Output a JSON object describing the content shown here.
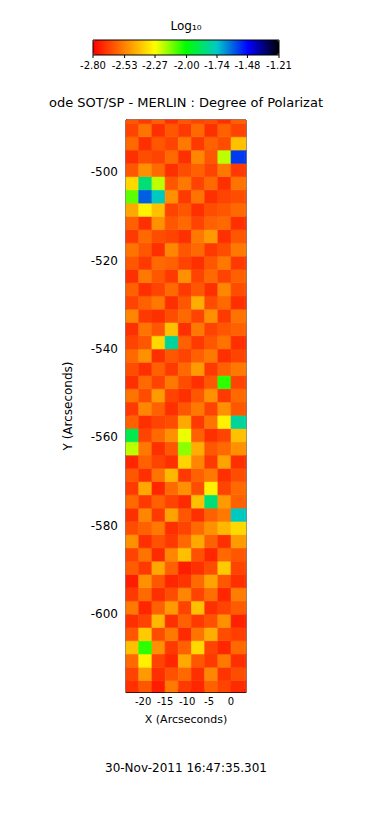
{
  "chart_data": {
    "type": "heatmap",
    "title": "ode SOT/SP - MERLIN : Degree of Polarizat",
    "x_label": "X (Arcseconds)",
    "y_label": "Y (Arcseconds)",
    "annotations": [
      "30-Nov-2011 16:47:35.301"
    ],
    "xlim": [
      -23.9,
      3.4
    ],
    "ylim": [
      -617.6,
      -488.2
    ],
    "xticks": [
      -20,
      -15,
      -10,
      -5,
      0
    ],
    "yticks": [
      -600,
      -580,
      -560,
      -540,
      -520,
      -500
    ],
    "colorbar": {
      "title": "Log₁₀",
      "range": [
        -2.8,
        -1.21
      ],
      "ticks": [
        {
          "value": -2.8,
          "label": "-2.80"
        },
        -2.53,
        -2.27,
        {
          "value": -2.0,
          "label": "-2.00"
        },
        -1.74,
        -1.48,
        -1.21
      ]
    },
    "x": [
      -22.5,
      -19.5,
      -16.5,
      -13.5,
      -10.5,
      -7.5,
      -4.5,
      -1.5,
      1.5,
      4.5
    ],
    "y": [
      -616.5,
      -613.5,
      -610.5,
      -607.5,
      -604.5,
      -601.5,
      -598.5,
      -595.5,
      -592.5,
      -589.5,
      -586.5,
      -583.5,
      -580.5,
      -577.5,
      -574.5,
      -571.5,
      -568.5,
      -565.5,
      -562.5,
      -559.5,
      -556.5,
      -553.5,
      -550.5,
      -547.5,
      -544.5,
      -541.5,
      -538.5,
      -535.5,
      -532.5,
      -529.5,
      -526.5,
      -523.5,
      -520.5,
      -517.5,
      -514.5,
      -511.5,
      -508.5,
      -505.5,
      -502.5,
      -499.5,
      -496.5,
      -493.5,
      -490.5,
      -487.5
    ],
    "values": [
      [
        -2.7,
        -2.62,
        -2.74,
        -2.55,
        -2.68,
        -2.72,
        -2.6,
        -2.66,
        -2.71,
        -2.71
      ],
      [
        -2.66,
        -2.48,
        -2.7,
        -2.63,
        -2.58,
        -2.7,
        -2.52,
        -2.69,
        -2.64,
        -2.64
      ],
      [
        -2.58,
        -2.3,
        -2.66,
        -2.72,
        -2.45,
        -2.62,
        -2.68,
        -2.55,
        -2.7,
        -2.7
      ],
      [
        -2.4,
        -2.05,
        -2.5,
        -2.68,
        -2.6,
        -2.35,
        -2.66,
        -2.72,
        -2.58,
        -2.58
      ],
      [
        -2.62,
        -2.38,
        -2.64,
        -2.55,
        -2.71,
        -2.56,
        -2.44,
        -2.64,
        -2.67,
        -2.67
      ],
      [
        -2.7,
        -2.66,
        -2.42,
        -2.7,
        -2.6,
        -2.68,
        -2.63,
        -2.5,
        -2.73,
        -2.73
      ],
      [
        -2.55,
        -2.72,
        -2.6,
        -2.48,
        -2.66,
        -2.4,
        -2.7,
        -2.66,
        -2.61,
        -2.61
      ],
      [
        -2.68,
        -2.58,
        -2.7,
        -2.64,
        -2.52,
        -2.66,
        -2.57,
        -2.72,
        -2.54,
        -2.54
      ],
      [
        -2.74,
        -2.5,
        -2.62,
        -2.72,
        -2.69,
        -2.58,
        -2.46,
        -2.62,
        -2.7,
        -2.7
      ],
      [
        -2.61,
        -2.68,
        -2.45,
        -2.6,
        -2.74,
        -2.7,
        -2.64,
        -2.38,
        -2.66,
        -2.66
      ],
      [
        -2.66,
        -2.56,
        -2.71,
        -2.52,
        -2.4,
        -2.63,
        -2.72,
        -2.58,
        -2.62,
        -2.62
      ],
      [
        -2.5,
        -2.7,
        -2.63,
        -2.68,
        -2.58,
        -2.45,
        -2.6,
        -2.7,
        -2.48,
        -2.48
      ],
      [
        -2.64,
        -2.6,
        -2.55,
        -2.7,
        -2.66,
        -2.58,
        -2.5,
        -2.42,
        -2.35,
        -2.35
      ],
      [
        -2.7,
        -2.52,
        -2.68,
        -2.46,
        -2.62,
        -2.7,
        -2.6,
        -2.55,
        -1.75,
        -1.75
      ],
      [
        -2.58,
        -2.68,
        -2.6,
        -2.66,
        -2.71,
        -2.4,
        -1.85,
        -2.48,
        -2.6,
        -2.6
      ],
      [
        -2.68,
        -2.45,
        -2.72,
        -2.58,
        -2.5,
        -2.64,
        -2.3,
        -2.66,
        -2.58,
        -2.58
      ],
      [
        -2.62,
        -2.7,
        -2.56,
        -2.42,
        -2.68,
        -2.6,
        -2.55,
        -2.7,
        -2.64,
        -2.64
      ],
      [
        -2.72,
        -2.6,
        -2.66,
        -2.7,
        -2.36,
        -2.52,
        -2.68,
        -2.46,
        -2.7,
        -2.7
      ],
      [
        -2.2,
        -2.55,
        -2.7,
        -2.62,
        -2.15,
        -2.44,
        -2.62,
        -2.58,
        -2.5,
        -2.5
      ],
      [
        -1.9,
        -2.66,
        -2.58,
        -2.5,
        -2.25,
        -2.6,
        -2.7,
        -2.66,
        -2.4,
        -2.4
      ],
      [
        -2.6,
        -2.7,
        -2.66,
        -2.64,
        -2.45,
        -2.68,
        -2.56,
        -2.3,
        -1.8,
        -1.8
      ],
      [
        -2.68,
        -2.52,
        -2.6,
        -2.7,
        -2.62,
        -2.55,
        -2.66,
        -2.5,
        -2.62,
        -2.62
      ],
      [
        -2.56,
        -2.64,
        -2.48,
        -2.66,
        -2.7,
        -2.62,
        -2.5,
        -2.68,
        -2.58,
        -2.58
      ],
      [
        -2.7,
        -2.58,
        -2.66,
        -2.55,
        -2.64,
        -2.7,
        -2.62,
        -2.05,
        -2.66,
        -2.66
      ],
      [
        -2.64,
        -2.7,
        -2.6,
        -2.68,
        -2.58,
        -2.48,
        -2.68,
        -2.6,
        -2.55,
        -2.55
      ],
      [
        -2.58,
        -2.5,
        -2.7,
        -2.62,
        -2.66,
        -2.6,
        -2.55,
        -2.7,
        -2.66,
        -2.66
      ],
      [
        -2.66,
        -2.62,
        -2.35,
        -1.8,
        -2.6,
        -2.68,
        -2.62,
        -2.56,
        -2.7,
        -2.7
      ],
      [
        -2.7,
        -2.56,
        -2.62,
        -2.4,
        -2.7,
        -2.55,
        -2.66,
        -2.62,
        -2.6,
        -2.6
      ],
      [
        -2.52,
        -2.68,
        -2.7,
        -2.64,
        -2.58,
        -2.66,
        -2.5,
        -2.68,
        -2.56,
        -2.56
      ],
      [
        -2.66,
        -2.6,
        -2.55,
        -2.7,
        -2.62,
        -2.44,
        -2.64,
        -2.58,
        -2.7,
        -2.7
      ],
      [
        -2.6,
        -2.7,
        -2.66,
        -2.58,
        -2.68,
        -2.62,
        -2.7,
        -2.52,
        -2.64,
        -2.64
      ],
      [
        -2.7,
        -2.55,
        -2.62,
        -2.68,
        -2.5,
        -2.66,
        -2.58,
        -2.66,
        -2.6,
        -2.6
      ],
      [
        -2.62,
        -2.68,
        -2.58,
        -2.6,
        -2.66,
        -2.7,
        -2.62,
        -2.55,
        -2.68,
        -2.68
      ],
      [
        -2.56,
        -2.62,
        -2.7,
        -2.52,
        -2.62,
        -2.58,
        -2.68,
        -2.64,
        -2.55,
        -2.55
      ],
      [
        -2.68,
        -2.58,
        -2.64,
        -2.66,
        -2.7,
        -2.55,
        -2.48,
        -2.7,
        -2.62,
        -2.62
      ],
      [
        -2.6,
        -2.7,
        -2.5,
        -2.62,
        -2.58,
        -2.66,
        -2.6,
        -2.58,
        -2.7,
        -2.7
      ],
      [
        -2.45,
        -2.3,
        -2.4,
        -2.66,
        -2.62,
        -2.7,
        -2.64,
        -2.62,
        -2.58,
        -2.58
      ],
      [
        -2.1,
        -1.6,
        -1.75,
        -2.5,
        -2.68,
        -2.56,
        -2.7,
        -2.66,
        -2.64,
        -2.64
      ],
      [
        -2.35,
        -1.85,
        -2.2,
        -2.62,
        -2.55,
        -2.66,
        -2.58,
        -2.7,
        -2.56,
        -2.56
      ],
      [
        -2.62,
        -2.5,
        -2.58,
        -2.7,
        -2.64,
        -2.6,
        -2.66,
        -2.55,
        -2.68,
        -2.68
      ],
      [
        -2.7,
        -2.64,
        -2.66,
        -2.58,
        -2.7,
        -2.52,
        -2.62,
        -2.2,
        -1.55,
        -1.55
      ],
      [
        -2.58,
        -2.7,
        -2.62,
        -2.66,
        -2.55,
        -2.68,
        -2.6,
        -2.64,
        -2.4,
        -2.4
      ],
      [
        -2.66,
        -2.56,
        -2.7,
        -2.62,
        -2.68,
        -2.58,
        -2.7,
        -2.6,
        -2.66,
        -2.66
      ],
      [
        -2.62,
        -2.68,
        -2.6,
        -2.7,
        -2.62,
        -2.66,
        -2.64,
        -2.7,
        -2.6,
        -2.6
      ]
    ]
  }
}
